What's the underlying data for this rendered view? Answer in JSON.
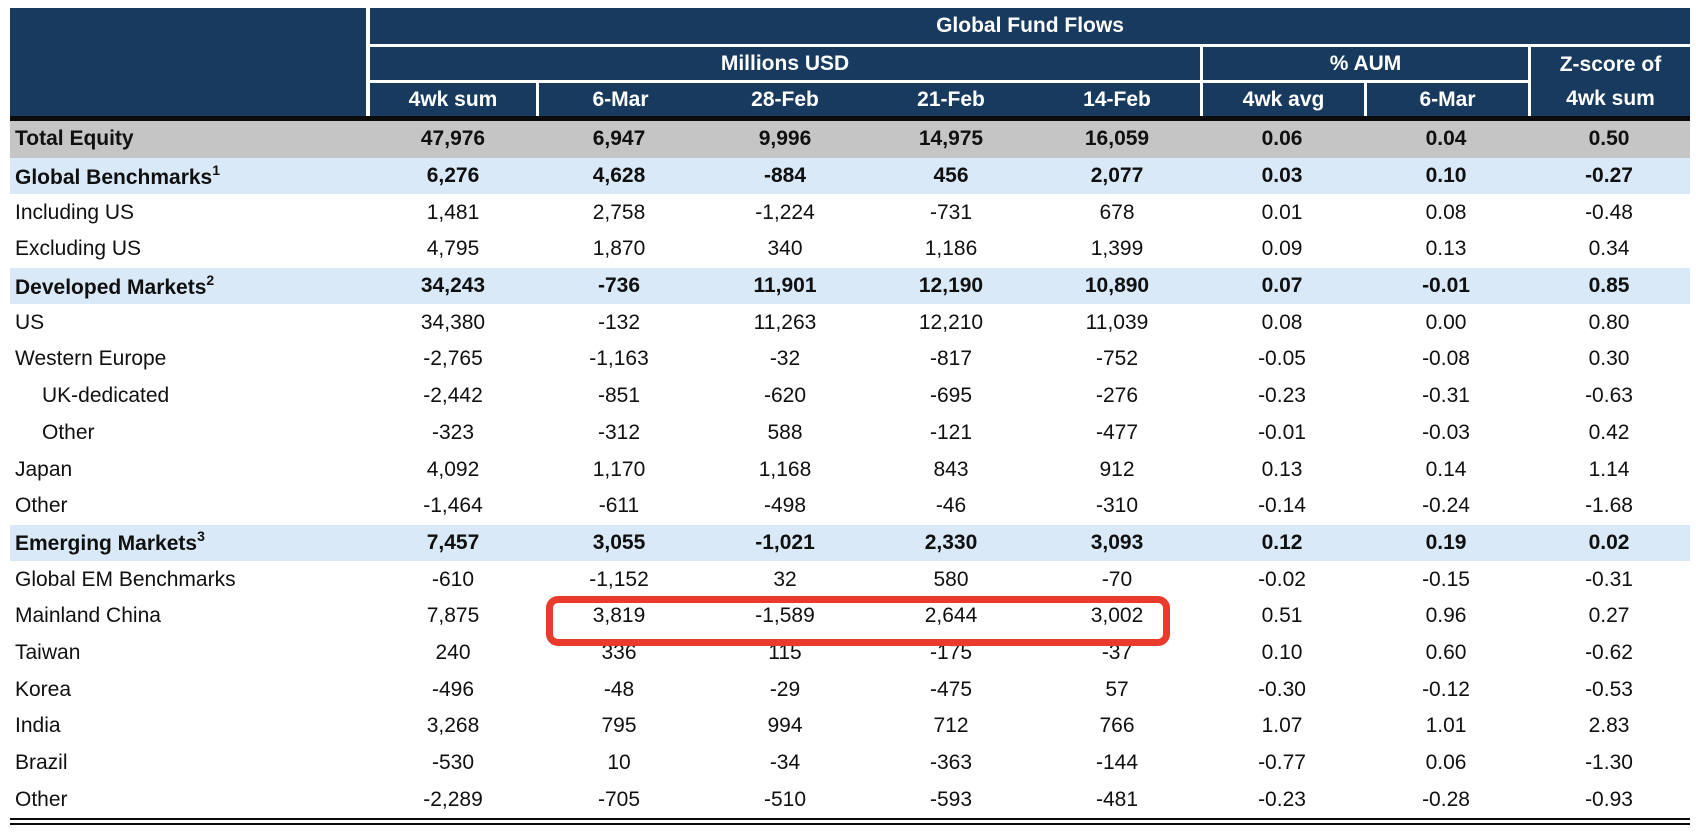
{
  "table": {
    "title": "Global Fund Flows",
    "column_groups": [
      "Millions USD",
      "% AUM",
      "Z-score of"
    ],
    "sub_columns": [
      "4wk sum",
      "6-Mar",
      "28-Feb",
      "21-Feb",
      "14-Feb",
      "4wk avg",
      "6-Mar",
      "4wk sum"
    ],
    "rows": [
      {
        "label": "Total Equity",
        "style": "total",
        "values": [
          "47,976",
          "6,947",
          "9,996",
          "14,975",
          "16,059",
          "0.06",
          "0.04",
          "0.50"
        ]
      },
      {
        "label": "Global Benchmarks",
        "sup": "1",
        "style": "section",
        "values": [
          "6,276",
          "4,628",
          "-884",
          "456",
          "2,077",
          "0.03",
          "0.10",
          "-0.27"
        ]
      },
      {
        "label": "Including US",
        "style": "normal",
        "values": [
          "1,481",
          "2,758",
          "-1,224",
          "-731",
          "678",
          "0.01",
          "0.08",
          "-0.48"
        ]
      },
      {
        "label": "Excluding US",
        "style": "normal",
        "values": [
          "4,795",
          "1,870",
          "340",
          "1,186",
          "1,399",
          "0.09",
          "0.13",
          "0.34"
        ]
      },
      {
        "label": "Developed Markets",
        "sup": "2",
        "style": "section",
        "values": [
          "34,243",
          "-736",
          "11,901",
          "12,190",
          "10,890",
          "0.07",
          "-0.01",
          "0.85"
        ]
      },
      {
        "label": "US",
        "style": "normal",
        "values": [
          "34,380",
          "-132",
          "11,263",
          "12,210",
          "11,039",
          "0.08",
          "0.00",
          "0.80"
        ]
      },
      {
        "label": "Western Europe",
        "style": "normal",
        "values": [
          "-2,765",
          "-1,163",
          "-32",
          "-817",
          "-752",
          "-0.05",
          "-0.08",
          "0.30"
        ]
      },
      {
        "label": "UK-dedicated",
        "style": "indent",
        "values": [
          "-2,442",
          "-851",
          "-620",
          "-695",
          "-276",
          "-0.23",
          "-0.31",
          "-0.63"
        ]
      },
      {
        "label": "Other",
        "style": "indent",
        "values": [
          "-323",
          "-312",
          "588",
          "-121",
          "-477",
          "-0.01",
          "-0.03",
          "0.42"
        ]
      },
      {
        "label": "Japan",
        "style": "normal",
        "values": [
          "4,092",
          "1,170",
          "1,168",
          "843",
          "912",
          "0.13",
          "0.14",
          "1.14"
        ]
      },
      {
        "label": "Other",
        "style": "normal",
        "values": [
          "-1,464",
          "-611",
          "-498",
          "-46",
          "-310",
          "-0.14",
          "-0.24",
          "-1.68"
        ]
      },
      {
        "label": "Emerging Markets",
        "sup": "3",
        "style": "section",
        "values": [
          "7,457",
          "3,055",
          "-1,021",
          "2,330",
          "3,093",
          "0.12",
          "0.19",
          "0.02"
        ]
      },
      {
        "label": "Global EM Benchmarks",
        "style": "normal",
        "values": [
          "-610",
          "-1,152",
          "32",
          "580",
          "-70",
          "-0.02",
          "-0.15",
          "-0.31"
        ]
      },
      {
        "label": "Mainland China",
        "style": "normal",
        "highlight": true,
        "values": [
          "7,875",
          "3,819",
          "-1,589",
          "2,644",
          "3,002",
          "0.51",
          "0.96",
          "0.27"
        ]
      },
      {
        "label": "Taiwan",
        "style": "normal",
        "values": [
          "240",
          "336",
          "115",
          "-175",
          "-37",
          "0.10",
          "0.60",
          "-0.62"
        ]
      },
      {
        "label": "Korea",
        "style": "normal",
        "values": [
          "-496",
          "-48",
          "-29",
          "-475",
          "57",
          "-0.30",
          "-0.12",
          "-0.53"
        ]
      },
      {
        "label": "India",
        "style": "normal",
        "values": [
          "3,268",
          "795",
          "994",
          "712",
          "766",
          "1.07",
          "1.01",
          "2.83"
        ]
      },
      {
        "label": "Brazil",
        "style": "normal",
        "values": [
          "-530",
          "10",
          "-34",
          "-363",
          "-144",
          "-0.77",
          "0.06",
          "-1.30"
        ]
      },
      {
        "label": "Other",
        "style": "normal",
        "values": [
          "-2,289",
          "-705",
          "-510",
          "-593",
          "-481",
          "-0.23",
          "-0.28",
          "-0.93"
        ]
      }
    ]
  },
  "annotation": {
    "shape": "red-rounded-rectangle",
    "highlight_row": "Mainland China",
    "highlight_columns": [
      "6-Mar",
      "28-Feb",
      "21-Feb",
      "14-Feb"
    ],
    "highlighted_values": [
      "3,819",
      "-1,589",
      "2,644",
      "3,002"
    ]
  },
  "colors": {
    "header_navy": "#183A5E",
    "total_row_gray": "#C5C5C5",
    "section_row_blue": "#D9E9F8",
    "highlight_red": "#E93A2B",
    "rule_black": "#0B0B0B",
    "header_text": "#FFFFFF",
    "body_text": "#101010"
  },
  "chart_data": {
    "type": "table",
    "title": "Global Fund Flows",
    "column_groups": [
      {
        "label": "Millions USD",
        "columns": [
          "4wk sum",
          "6-Mar",
          "28-Feb",
          "21-Feb",
          "14-Feb"
        ]
      },
      {
        "label": "% AUM",
        "columns": [
          "4wk avg",
          "6-Mar"
        ]
      },
      {
        "label": "Z-score of 4wk sum",
        "columns": [
          "4wk sum"
        ]
      }
    ],
    "rows": [
      {
        "label": "Total Equity",
        "values": [
          47976,
          6947,
          9996,
          14975,
          16059,
          0.06,
          0.04,
          0.5
        ]
      },
      {
        "label": "Global Benchmarks",
        "footnote": 1,
        "values": [
          6276,
          4628,
          -884,
          456,
          2077,
          0.03,
          0.1,
          -0.27
        ]
      },
      {
        "label": "Including US",
        "values": [
          1481,
          2758,
          -1224,
          -731,
          678,
          0.01,
          0.08,
          -0.48
        ]
      },
      {
        "label": "Excluding US",
        "values": [
          4795,
          1870,
          340,
          1186,
          1399,
          0.09,
          0.13,
          0.34
        ]
      },
      {
        "label": "Developed Markets",
        "footnote": 2,
        "values": [
          34243,
          -736,
          11901,
          12190,
          10890,
          0.07,
          -0.01,
          0.85
        ]
      },
      {
        "label": "US",
        "values": [
          34380,
          -132,
          11263,
          12210,
          11039,
          0.08,
          0.0,
          0.8
        ]
      },
      {
        "label": "Western Europe",
        "values": [
          -2765,
          -1163,
          -32,
          -817,
          -752,
          -0.05,
          -0.08,
          0.3
        ]
      },
      {
        "label": "UK-dedicated",
        "values": [
          -2442,
          -851,
          -620,
          -695,
          -276,
          -0.23,
          -0.31,
          -0.63
        ]
      },
      {
        "label": "Other (Western Europe)",
        "values": [
          -323,
          -312,
          588,
          -121,
          -477,
          -0.01,
          -0.03,
          0.42
        ]
      },
      {
        "label": "Japan",
        "values": [
          4092,
          1170,
          1168,
          843,
          912,
          0.13,
          0.14,
          1.14
        ]
      },
      {
        "label": "Other (Developed Markets)",
        "values": [
          -1464,
          -611,
          -498,
          -46,
          -310,
          -0.14,
          -0.24,
          -1.68
        ]
      },
      {
        "label": "Emerging Markets",
        "footnote": 3,
        "values": [
          7457,
          3055,
          -1021,
          2330,
          3093,
          0.12,
          0.19,
          0.02
        ]
      },
      {
        "label": "Global EM Benchmarks",
        "values": [
          -610,
          -1152,
          32,
          580,
          -70,
          -0.02,
          -0.15,
          -0.31
        ]
      },
      {
        "label": "Mainland China",
        "values": [
          7875,
          3819,
          -1589,
          2644,
          3002,
          0.51,
          0.96,
          0.27
        ]
      },
      {
        "label": "Taiwan",
        "values": [
          240,
          336,
          115,
          -175,
          -37,
          0.1,
          0.6,
          -0.62
        ]
      },
      {
        "label": "Korea",
        "values": [
          -496,
          -48,
          -29,
          -475,
          57,
          -0.3,
          -0.12,
          -0.53
        ]
      },
      {
        "label": "India",
        "values": [
          3268,
          795,
          994,
          712,
          766,
          1.07,
          1.01,
          2.83
        ]
      },
      {
        "label": "Brazil",
        "values": [
          -530,
          10,
          -34,
          -363,
          -144,
          -0.77,
          0.06,
          -1.3
        ]
      },
      {
        "label": "Other (Emerging Markets)",
        "values": [
          -2289,
          -705,
          -510,
          -593,
          -481,
          -0.23,
          -0.28,
          -0.93
        ]
      }
    ],
    "annotation": "Red rounded box highlights Mainland China weekly flows (Millions USD): 3,819 / -1,589 / 2,644 / 3,002"
  }
}
